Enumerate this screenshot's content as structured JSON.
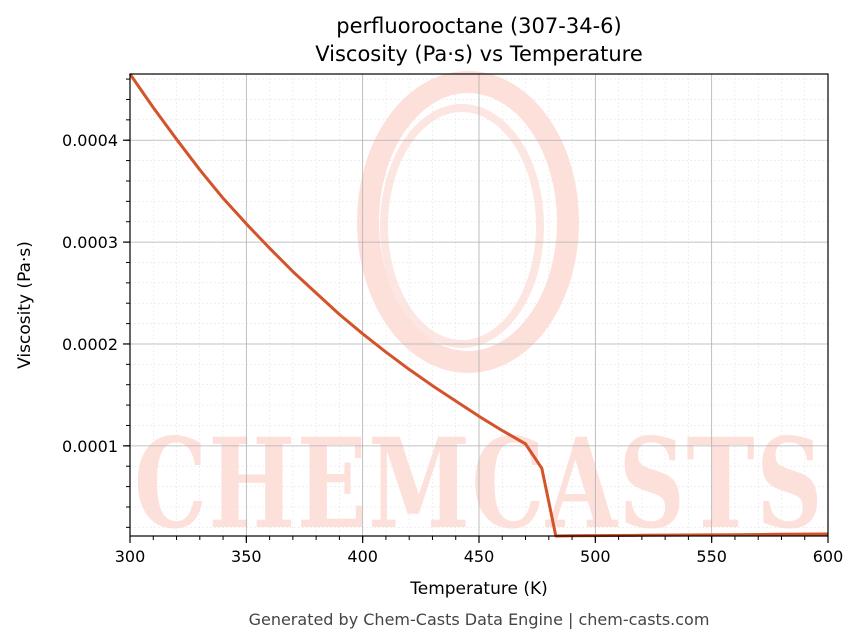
{
  "chart_data": {
    "type": "line",
    "title": "perfluorooctane (307-34-6)",
    "subtitle": "Viscosity (Pa·s) vs Temperature",
    "xlabel": "Temperature (K)",
    "ylabel": "Viscosity (Pa·s)",
    "xlim": [
      300,
      600
    ],
    "ylim": [
      1.15e-05,
      0.000465
    ],
    "x_ticks": [
      300,
      350,
      400,
      450,
      500,
      550,
      600
    ],
    "x_tick_labels": [
      "300",
      "350",
      "400",
      "450",
      "500",
      "550",
      "600"
    ],
    "y_ticks": [
      0.0001,
      0.0002,
      0.0003,
      0.0004
    ],
    "y_tick_labels": [
      "0.0001",
      "0.0002",
      "0.0003",
      "0.0004"
    ],
    "grid": true,
    "line_color": "#d4532a",
    "series": [
      {
        "x": [
          300,
          310,
          320,
          330,
          340,
          350,
          360,
          370,
          380,
          390,
          400,
          410,
          420,
          430,
          440,
          450,
          460,
          470,
          477,
          480,
          483,
          490,
          500,
          520,
          540,
          560,
          580,
          600
        ],
        "y": [
          0.000465,
          0.000432,
          0.000401,
          0.000371,
          0.000343,
          0.000318,
          0.000294,
          0.000271,
          0.00025,
          0.000229,
          0.00021,
          0.000192,
          0.000175,
          0.000159,
          0.000144,
          0.000129,
          0.000115,
          0.000102,
          7.8e-05,
          4.5e-05,
          1.15e-05,
          1.17e-05,
          1.19e-05,
          1.22e-05,
          1.25e-05,
          1.28e-05,
          1.32e-05,
          1.35e-05
        ]
      }
    ]
  },
  "watermark": {
    "text": "CHEMCASTS",
    "color": "#fde0da"
  },
  "footer": "Generated by Chem-Casts Data Engine | chem-casts.com"
}
